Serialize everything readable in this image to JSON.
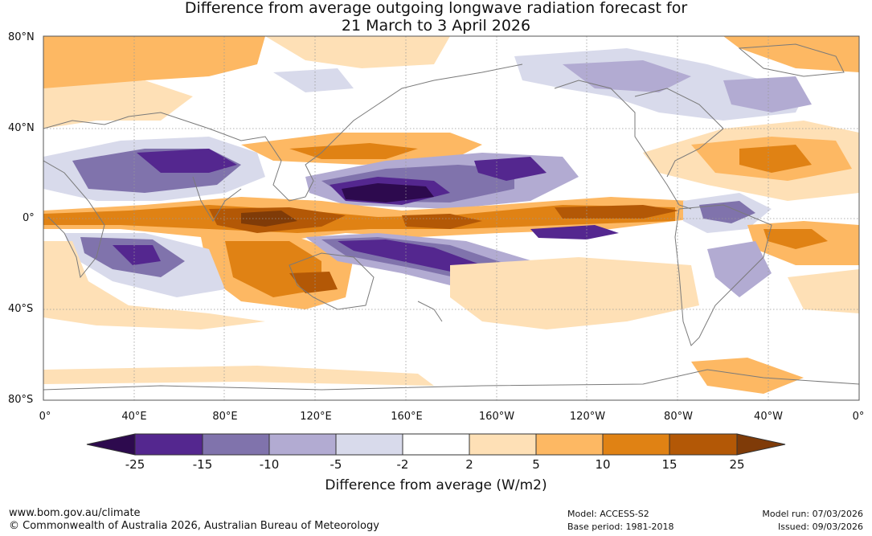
{
  "title": {
    "line1": "Difference from average outgoing longwave radiation forecast for",
    "line2": "21 March to 3 April 2026"
  },
  "map": {
    "latitude_labels": [
      "80°N",
      "40°N",
      "0°",
      "40°S",
      "80°S"
    ],
    "longitude_labels": [
      "0°",
      "40°E",
      "80°E",
      "120°E",
      "160°E",
      "160°W",
      "120°W",
      "80°W",
      "40°W",
      "0°"
    ]
  },
  "colorbar": {
    "title": "Difference from average (W/m2)",
    "ticks": [
      "-25",
      "-15",
      "-10",
      "-5",
      "-2",
      "2",
      "5",
      "10",
      "15",
      "25"
    ],
    "colors": {
      "below_-25": "#2d0a4e",
      "-25_-15": "#54278f",
      "-15_-10": "#8073ac",
      "-10_-5": "#b2abd2",
      "-5_-2": "#d8daeb",
      "-2_2": "#ffffff",
      "2_5": "#fee0b6",
      "5_10": "#fdb863",
      "10_15": "#e08214",
      "15_25": "#b35806",
      "above_25": "#7f3b08"
    }
  },
  "footer": {
    "website": "www.bom.gov.au/climate",
    "copyright": "© Commonwealth of Australia 2026, Australian Bureau of Meteorology",
    "model": "Model: ACCESS-S2",
    "base_period": "Base period: 1981-2018",
    "model_run": "Model run: 07/03/2026",
    "issued": "Issued: 09/03/2026"
  }
}
